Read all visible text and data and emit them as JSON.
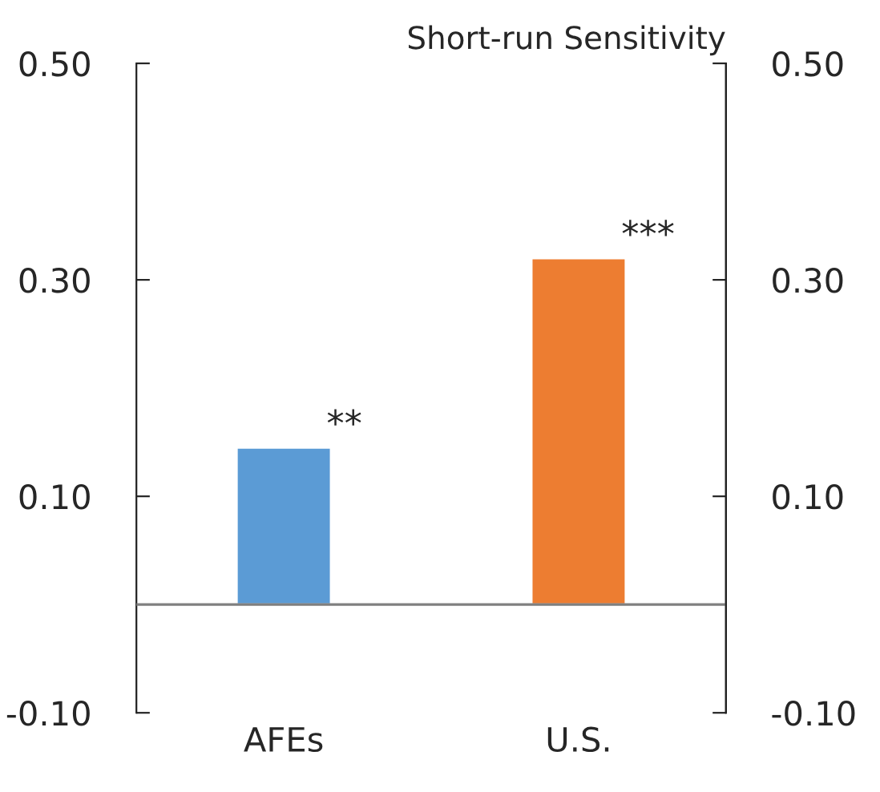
{
  "chart_data": {
    "type": "bar",
    "title": "Short-run Sensitivity",
    "categories": [
      "AFEs",
      "U.S."
    ],
    "series": [
      {
        "values": [
          0.145,
          0.32
        ],
        "colors": [
          "#5b9bd5",
          "#ed7d31"
        ]
      }
    ],
    "ylim": [
      -0.1,
      0.5
    ],
    "yticks": [
      {
        "value": -0.1,
        "label": "-0.10"
      },
      {
        "value": 0.1,
        "label": "0.10"
      },
      {
        "value": 0.3,
        "label": "0.30"
      },
      {
        "value": 0.5,
        "label": "0.50"
      }
    ],
    "y2lim": [
      -0.1,
      0.5
    ],
    "y2ticks": [
      {
        "value": -0.1,
        "label": "-0.10"
      },
      {
        "value": 0.1,
        "label": "0.10"
      },
      {
        "value": 0.3,
        "label": "0.30"
      },
      {
        "value": 0.5,
        "label": "0.50"
      }
    ],
    "ref_lines": [
      {
        "axis": "y",
        "value": 0,
        "color": "#7f7f7f"
      }
    ],
    "annotations": [
      {
        "text": "**",
        "x": "AFEs",
        "y": 0.145
      },
      {
        "text": "***",
        "x": "U.S.",
        "y": 0.32
      }
    ],
    "grid": false,
    "legend": false
  }
}
